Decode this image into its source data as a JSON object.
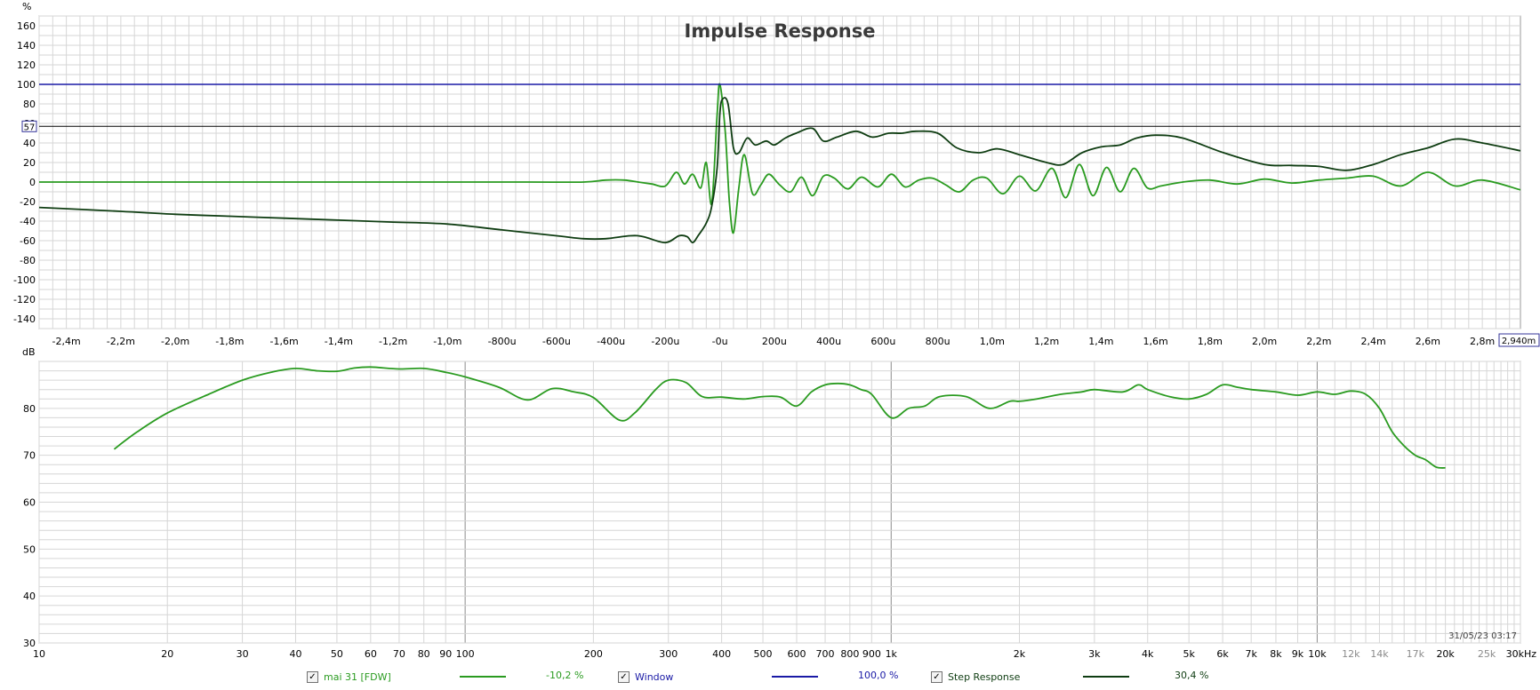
{
  "chart_data": [
    {
      "type": "line",
      "title": "Impulse Response",
      "ylabel": "%",
      "ylim": [
        -150,
        170
      ],
      "y_ticks": [
        160,
        140,
        120,
        100,
        80,
        60,
        40,
        20,
        0,
        -20,
        -40,
        -60,
        -80,
        -100,
        -120,
        -140
      ],
      "xlim": [
        -2.5,
        2.94
      ],
      "x_unit": "ms",
      "x_ticks": [
        {
          "v": -2.4,
          "label": "-2,4m"
        },
        {
          "v": -2.2,
          "label": "-2,2m"
        },
        {
          "v": -2.0,
          "label": "-2,0m"
        },
        {
          "v": -1.8,
          "label": "-1,8m"
        },
        {
          "v": -1.6,
          "label": "-1,6m"
        },
        {
          "v": -1.4,
          "label": "-1,4m"
        },
        {
          "v": -1.2,
          "label": "-1,2m"
        },
        {
          "v": -1.0,
          "label": "-1,0m"
        },
        {
          "v": -0.8,
          "label": "-800u"
        },
        {
          "v": -0.6,
          "label": "-600u"
        },
        {
          "v": -0.4,
          "label": "-400u"
        },
        {
          "v": -0.2,
          "label": "-200u"
        },
        {
          "v": 0.0,
          "label": "-0u"
        },
        {
          "v": 0.2,
          "label": "200u"
        },
        {
          "v": 0.4,
          "label": "400u"
        },
        {
          "v": 0.6,
          "label": "600u"
        },
        {
          "v": 0.8,
          "label": "800u"
        },
        {
          "v": 1.0,
          "label": "1,0m"
        },
        {
          "v": 1.2,
          "label": "1,2m"
        },
        {
          "v": 1.4,
          "label": "1,4m"
        },
        {
          "v": 1.6,
          "label": "1,6m"
        },
        {
          "v": 1.8,
          "label": "1,8m"
        },
        {
          "v": 2.0,
          "label": "2,0m"
        },
        {
          "v": 2.2,
          "label": "2,2m"
        },
        {
          "v": 2.4,
          "label": "2,4m"
        },
        {
          "v": 2.6,
          "label": "2,6m"
        },
        {
          "v": 2.8,
          "label": "2,8m"
        }
      ],
      "x_cursor_label": "2,940m",
      "y_cursor_value": 57,
      "y_cursor_label": "57",
      "grid": true,
      "series": [
        {
          "name": "Window",
          "color": "#1a1aa6",
          "x": [
            -2.5,
            2.94
          ],
          "y": [
            100,
            100
          ]
        },
        {
          "name": "Step Response",
          "color": "#0f3d12",
          "x": [
            -2.5,
            -2.2,
            -2.0,
            -1.8,
            -1.6,
            -1.4,
            -1.2,
            -1.0,
            -0.8,
            -0.6,
            -0.5,
            -0.42,
            -0.33,
            -0.28,
            -0.2,
            -0.15,
            -0.12,
            -0.1,
            -0.08,
            -0.05,
            -0.03,
            -0.01,
            0.0,
            0.01,
            0.03,
            0.05,
            0.07,
            0.1,
            0.13,
            0.17,
            0.2,
            0.24,
            0.28,
            0.34,
            0.38,
            0.43,
            0.5,
            0.56,
            0.62,
            0.67,
            0.72,
            0.8,
            0.87,
            0.95,
            1.02,
            1.1,
            1.2,
            1.26,
            1.33,
            1.4,
            1.47,
            1.53,
            1.6,
            1.7,
            1.85,
            2.0,
            2.1,
            2.2,
            2.3,
            2.4,
            2.5,
            2.6,
            2.7,
            2.8,
            2.94
          ],
          "y": [
            -26,
            -30,
            -33,
            -35,
            -37,
            -39,
            -41,
            -43,
            -49,
            -55,
            -58,
            -58,
            -55,
            -56,
            -62,
            -55,
            -56,
            -62,
            -55,
            -42,
            -25,
            15,
            70,
            85,
            80,
            35,
            30,
            45,
            38,
            42,
            38,
            45,
            50,
            55,
            42,
            46,
            52,
            46,
            50,
            50,
            52,
            50,
            35,
            30,
            34,
            28,
            20,
            18,
            30,
            36,
            38,
            45,
            48,
            45,
            30,
            18,
            17,
            16,
            12,
            18,
            28,
            35,
            44,
            40,
            32
          ]
        },
        {
          "name": "mai 31 [FDW]",
          "color": "#2a9b20",
          "x": [
            -2.5,
            -2.0,
            -1.5,
            -1.0,
            -0.7,
            -0.5,
            -0.42,
            -0.35,
            -0.3,
            -0.25,
            -0.2,
            -0.16,
            -0.13,
            -0.1,
            -0.07,
            -0.05,
            -0.03,
            -0.01,
            0.0,
            0.02,
            0.035,
            0.05,
            0.07,
            0.09,
            0.12,
            0.15,
            0.18,
            0.22,
            0.26,
            0.3,
            0.34,
            0.38,
            0.42,
            0.47,
            0.52,
            0.58,
            0.63,
            0.68,
            0.73,
            0.78,
            0.83,
            0.88,
            0.93,
            0.98,
            1.04,
            1.1,
            1.16,
            1.22,
            1.27,
            1.32,
            1.37,
            1.42,
            1.47,
            1.52,
            1.57,
            1.62,
            1.7,
            1.8,
            1.9,
            2.0,
            2.1,
            2.2,
            2.3,
            2.4,
            2.5,
            2.6,
            2.7,
            2.8,
            2.94
          ],
          "y": [
            0,
            0,
            0,
            0,
            0,
            0,
            2,
            2,
            0,
            -2,
            -4,
            10,
            -2,
            8,
            -6,
            20,
            -22,
            70,
            100,
            50,
            -20,
            -52,
            -5,
            28,
            -12,
            -3,
            8,
            -3,
            -10,
            5,
            -14,
            6,
            4,
            -7,
            5,
            -5,
            8,
            -5,
            2,
            4,
            -3,
            -10,
            2,
            4,
            -12,
            6,
            -9,
            14,
            -16,
            18,
            -14,
            15,
            -10,
            14,
            -6,
            -4,
            0,
            2,
            -2,
            3,
            -1,
            2,
            4,
            6,
            -4,
            10,
            -4,
            2,
            -8
          ]
        }
      ]
    },
    {
      "type": "line",
      "ylabel": "dB",
      "ylim": [
        30,
        90
      ],
      "y_ticks": [
        80,
        70,
        60,
        50,
        40,
        30
      ],
      "xscale": "log",
      "xlim": [
        10,
        30000
      ],
      "x_ticks": [
        {
          "v": 10,
          "label": "10"
        },
        {
          "v": 20,
          "label": "20"
        },
        {
          "v": 30,
          "label": "30"
        },
        {
          "v": 40,
          "label": "40"
        },
        {
          "v": 50,
          "label": "50"
        },
        {
          "v": 60,
          "label": "60"
        },
        {
          "v": 70,
          "label": "70"
        },
        {
          "v": 80,
          "label": "80"
        },
        {
          "v": 90,
          "label": "90"
        },
        {
          "v": 100,
          "label": "100"
        },
        {
          "v": 200,
          "label": "200"
        },
        {
          "v": 300,
          "label": "300"
        },
        {
          "v": 400,
          "label": "400"
        },
        {
          "v": 500,
          "label": "500"
        },
        {
          "v": 600,
          "label": "600"
        },
        {
          "v": 700,
          "label": "700"
        },
        {
          "v": 800,
          "label": "800"
        },
        {
          "v": 900,
          "label": "900"
        },
        {
          "v": 1000,
          "label": "1k"
        },
        {
          "v": 2000,
          "label": "2k"
        },
        {
          "v": 3000,
          "label": "3k"
        },
        {
          "v": 4000,
          "label": "4k"
        },
        {
          "v": 5000,
          "label": "5k"
        },
        {
          "v": 6000,
          "label": "6k"
        },
        {
          "v": 7000,
          "label": "7k"
        },
        {
          "v": 8000,
          "label": "8k"
        },
        {
          "v": 9000,
          "label": "9k"
        },
        {
          "v": 10000,
          "label": "10k"
        },
        {
          "v": 12000,
          "label": "12k",
          "dim": true
        },
        {
          "v": 14000,
          "label": "14k",
          "dim": true
        },
        {
          "v": 17000,
          "label": "17k",
          "dim": true
        },
        {
          "v": 20000,
          "label": "20k"
        },
        {
          "v": 25000,
          "label": "25k",
          "dim": true
        },
        {
          "v": 30000,
          "label": "30kHz"
        }
      ],
      "grid": true,
      "timestamp": "31/05/23 03:17",
      "series": [
        {
          "name": "mai 31 [FDW]",
          "color": "#2a9b20",
          "x": [
            15,
            17,
            20,
            25,
            30,
            35,
            40,
            45,
            50,
            55,
            60,
            70,
            80,
            90,
            100,
            120,
            140,
            160,
            180,
            200,
            230,
            250,
            280,
            300,
            330,
            360,
            400,
            450,
            500,
            550,
            600,
            650,
            700,
            750,
            800,
            850,
            900,
            1000,
            1100,
            1200,
            1300,
            1500,
            1700,
            1900,
            2000,
            2200,
            2500,
            2800,
            3000,
            3500,
            3800,
            4000,
            4500,
            5000,
            5500,
            6000,
            6500,
            7000,
            8000,
            9000,
            10000,
            11000,
            12000,
            13000,
            14000,
            15000,
            16000,
            17000,
            18000,
            19000,
            20000
          ],
          "y": [
            71.3,
            75,
            79,
            83,
            86,
            87.7,
            88.5,
            88,
            87.9,
            88.6,
            88.8,
            88.4,
            88.5,
            87.7,
            86.7,
            84.5,
            81.8,
            84.2,
            83.5,
            82.3,
            77.5,
            79,
            84,
            86,
            85.5,
            82.5,
            82.4,
            82,
            82.5,
            82.4,
            80.5,
            83.5,
            85,
            85.3,
            85,
            84,
            83,
            78,
            80,
            80.5,
            82.5,
            82.5,
            80,
            81.5,
            81.5,
            82,
            83,
            83.5,
            84,
            83.5,
            85,
            84,
            82.5,
            82,
            83,
            85,
            84.5,
            84,
            83.5,
            82.8,
            83.5,
            83,
            83.7,
            83,
            80,
            75,
            72,
            70,
            69,
            67.5,
            67.3
          ]
        }
      ]
    }
  ],
  "legend": {
    "items": [
      {
        "name": "mai 31 [FDW]",
        "pct": "-10,2 %",
        "color": "#2a9b20",
        "checked": "✓"
      },
      {
        "name": "Window",
        "pct": "100,0 %",
        "color": "#1a1aa6",
        "checked": "✓"
      },
      {
        "name": "Step Response",
        "pct": "30,4 %",
        "color": "#0f3d12",
        "checked": "✓"
      }
    ]
  },
  "colors": {
    "grid": "#d6d6d6",
    "grid_major": "#8c8c8c",
    "cursor": "#000000",
    "legend_text_fdw": "#2a9b20",
    "legend_text_window": "#1a1aa6",
    "legend_text_step": "#0f3d12"
  }
}
